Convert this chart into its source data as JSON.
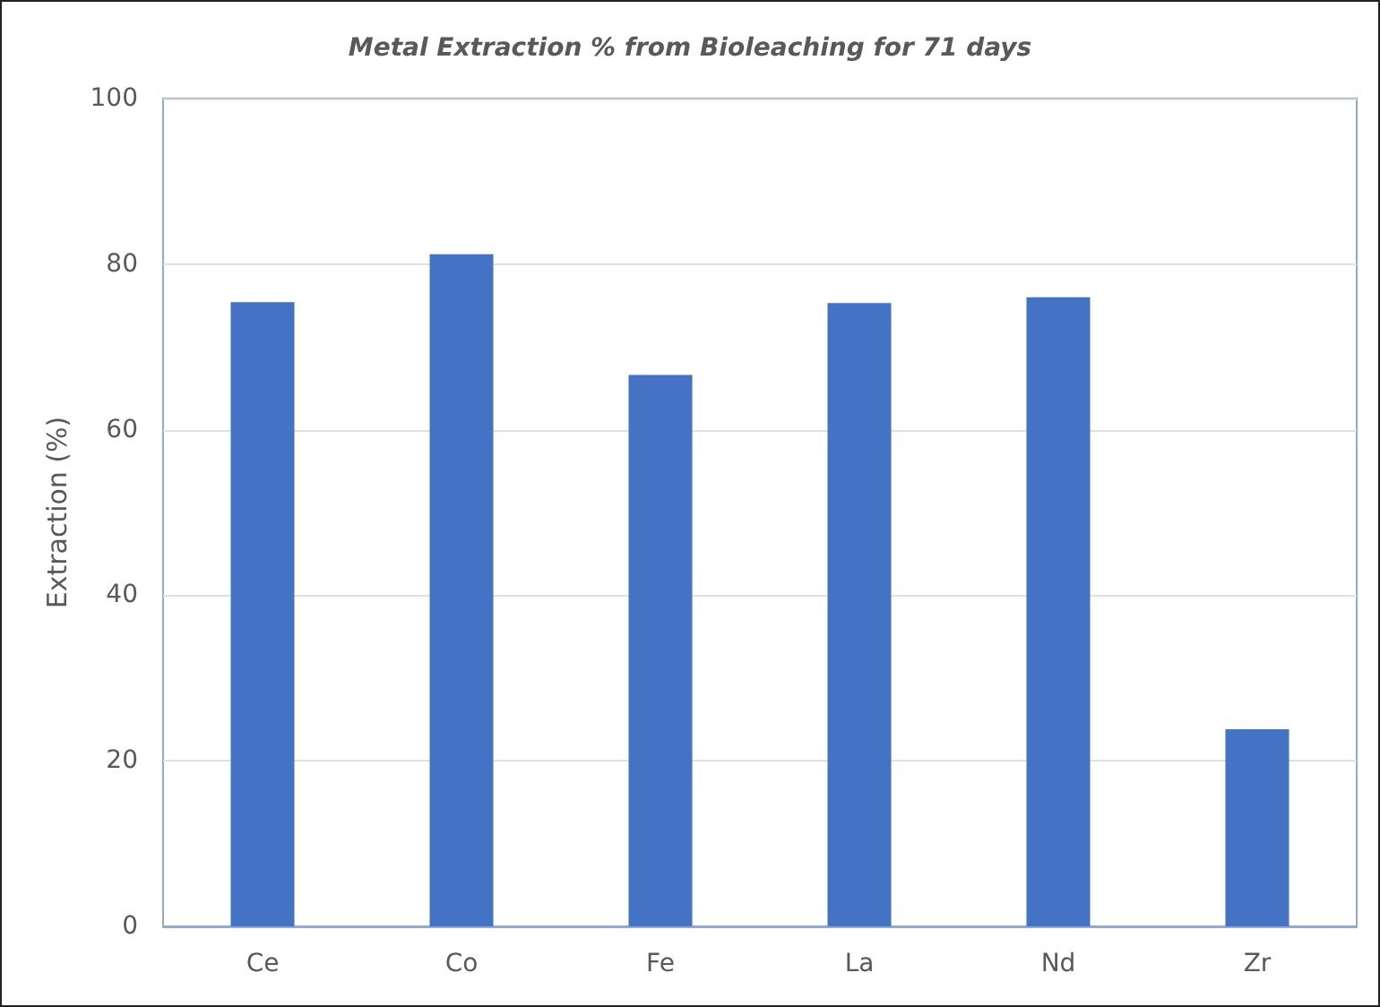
{
  "chart_data": {
    "type": "bar",
    "title": "Metal Extraction % from Bioleaching for 71 days",
    "ylabel": "Extraction (%)",
    "categories": [
      "Ce",
      "Co",
      "Fe",
      "La",
      "Nd",
      "Zr"
    ],
    "values": [
      75.4,
      81.2,
      66.6,
      75.3,
      76.0,
      23.8
    ],
    "color": "#4472c4",
    "ylim": [
      0,
      100
    ],
    "yticks": [
      0,
      20,
      40,
      60,
      80,
      100
    ],
    "grid": "y"
  }
}
